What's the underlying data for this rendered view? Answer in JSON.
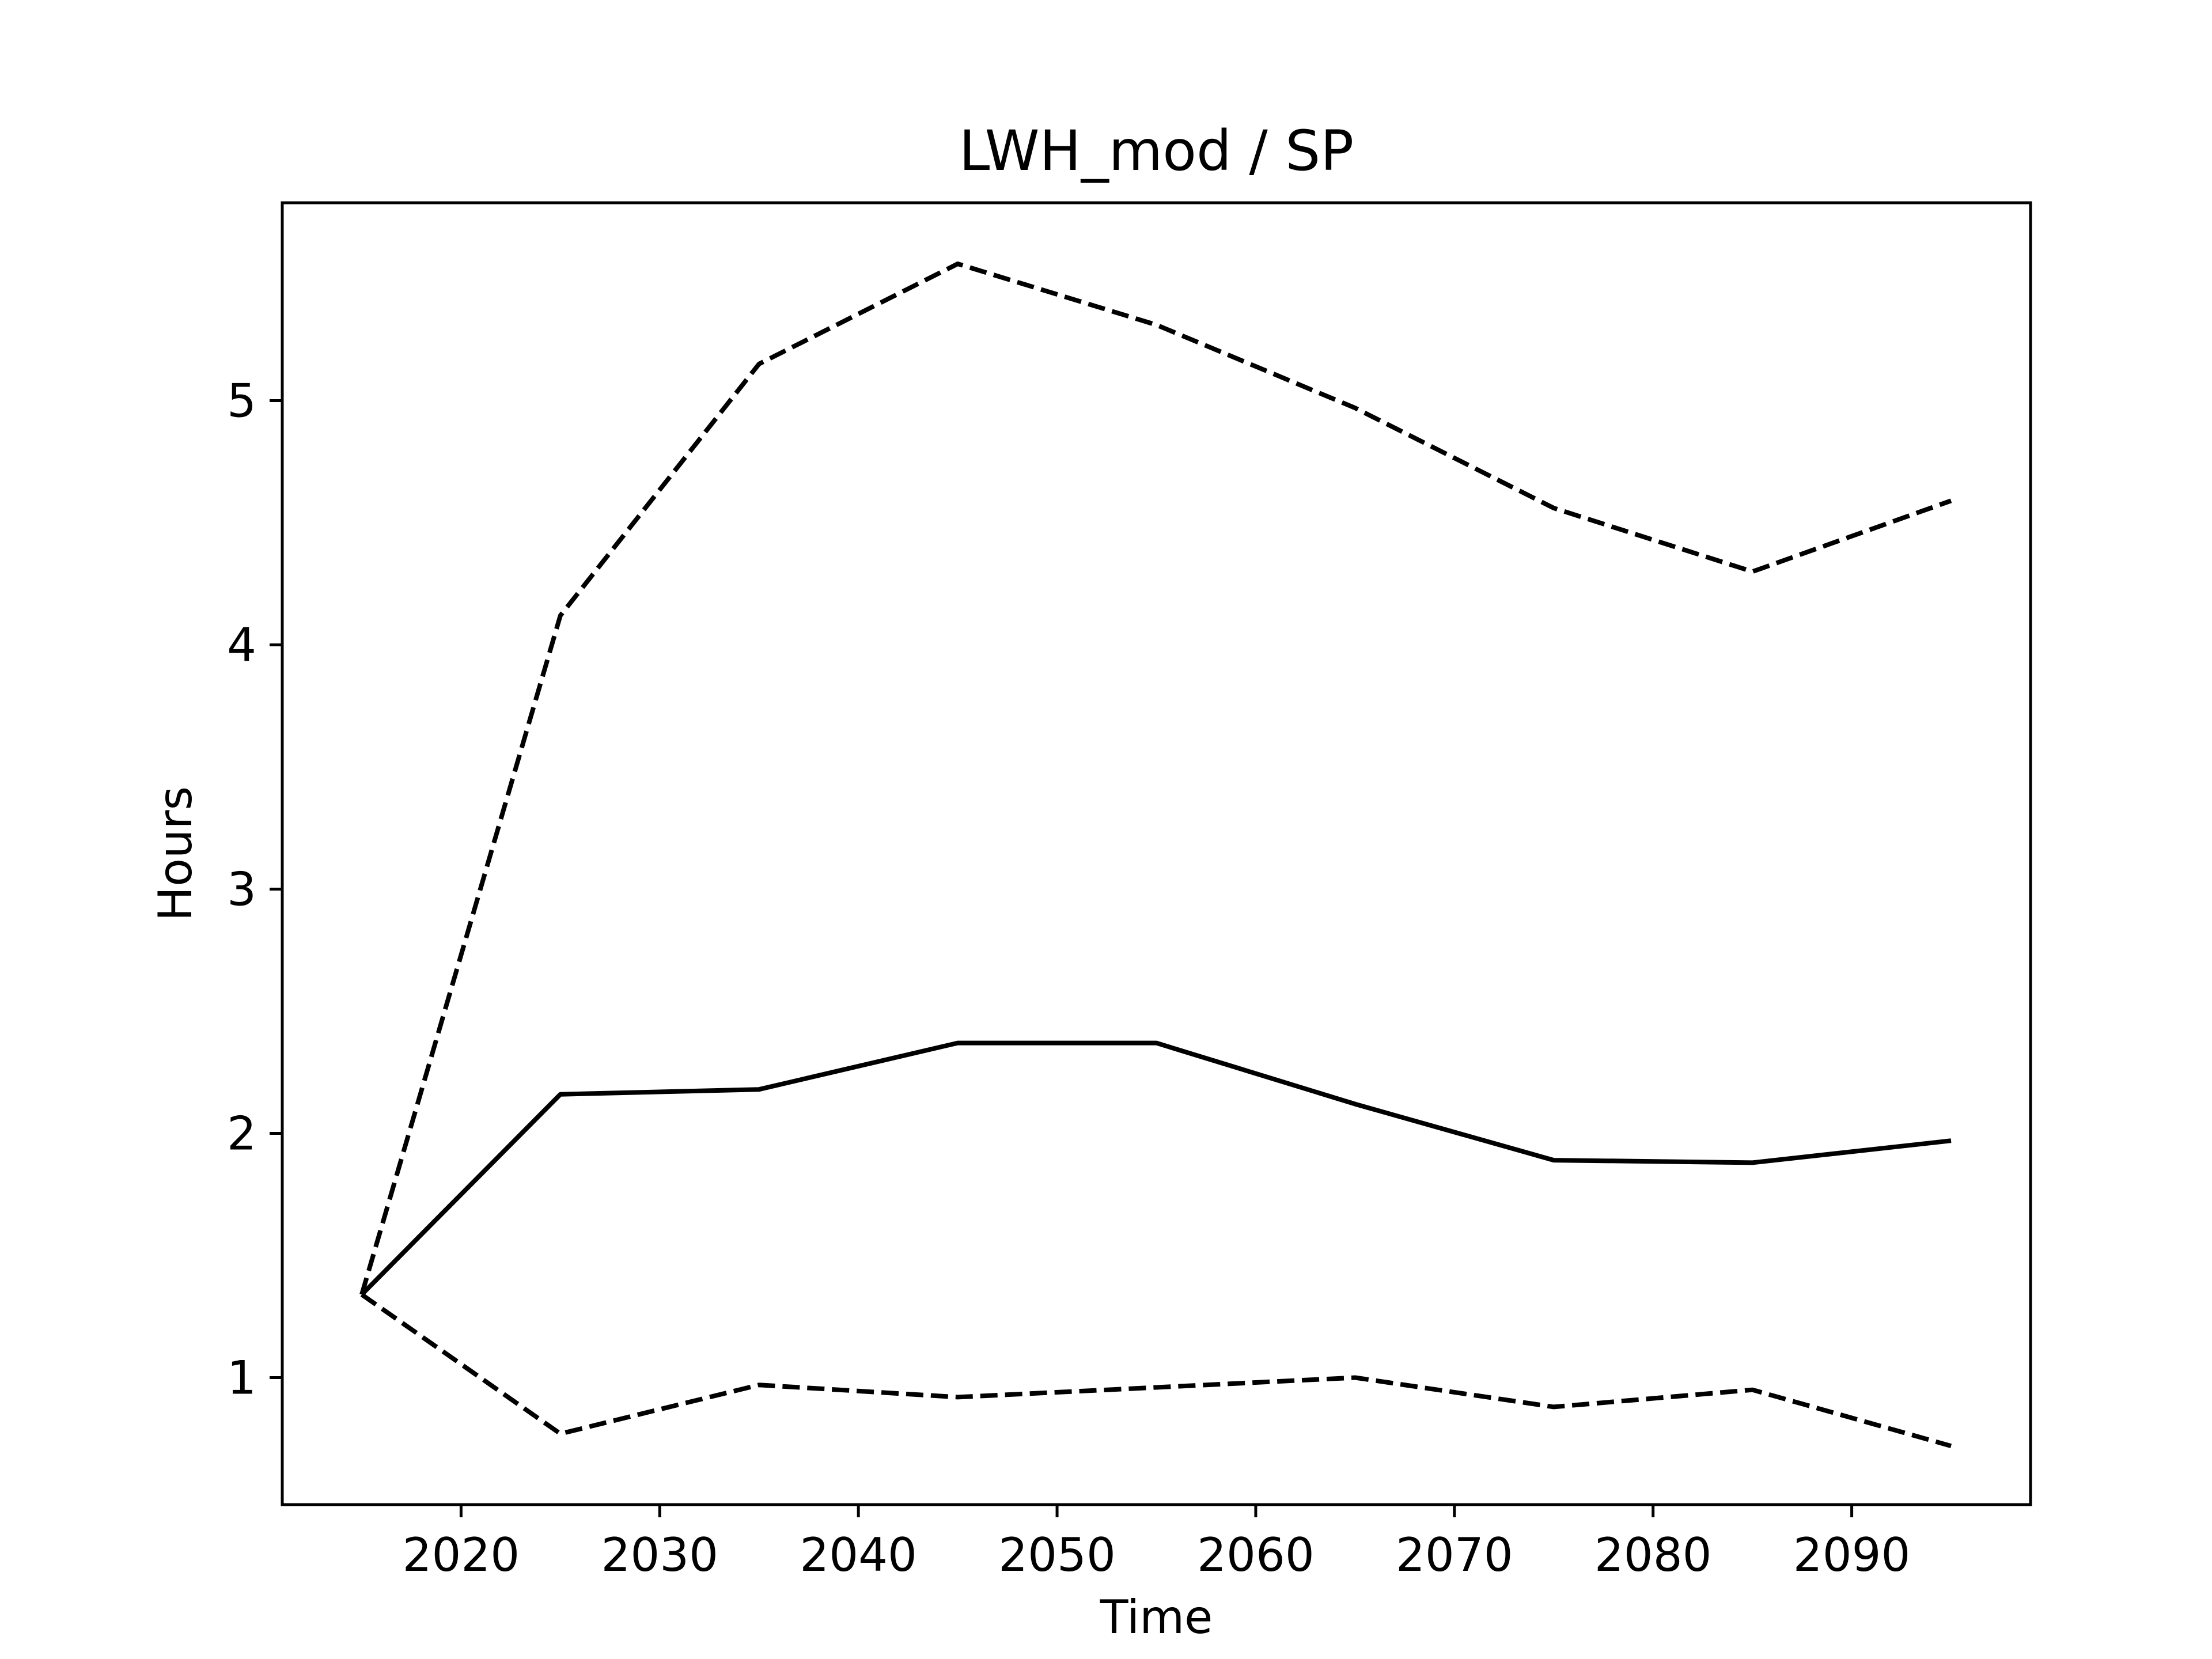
{
  "chart_data": {
    "type": "line",
    "title": "LWH_mod / SP",
    "xlabel": "Time",
    "ylabel": "Hours",
    "x": [
      2015,
      2025,
      2035,
      2045,
      2055,
      2065,
      2075,
      2085,
      2095
    ],
    "series": [
      {
        "values": [
          1.34,
          2.16,
          2.18,
          2.37,
          2.37,
          2.12,
          1.89,
          1.88,
          1.97
        ],
        "style": "solid",
        "color": "#000000"
      },
      {
        "values": [
          1.34,
          4.12,
          5.15,
          5.56,
          5.31,
          4.97,
          4.56,
          4.3,
          4.59
        ],
        "style": "dashed",
        "color": "#000000"
      },
      {
        "values": [
          1.34,
          0.77,
          0.97,
          0.92,
          0.96,
          1.0,
          0.88,
          0.95,
          0.72
        ],
        "style": "dashed",
        "color": "#000000"
      }
    ],
    "xlim": [
      2011,
      2099
    ],
    "ylim": [
      0.48,
      5.81
    ],
    "xticks": [
      2020,
      2030,
      2040,
      2050,
      2060,
      2070,
      2080,
      2090
    ],
    "yticks": [
      1,
      2,
      3,
      4,
      5
    ],
    "grid": false
  }
}
